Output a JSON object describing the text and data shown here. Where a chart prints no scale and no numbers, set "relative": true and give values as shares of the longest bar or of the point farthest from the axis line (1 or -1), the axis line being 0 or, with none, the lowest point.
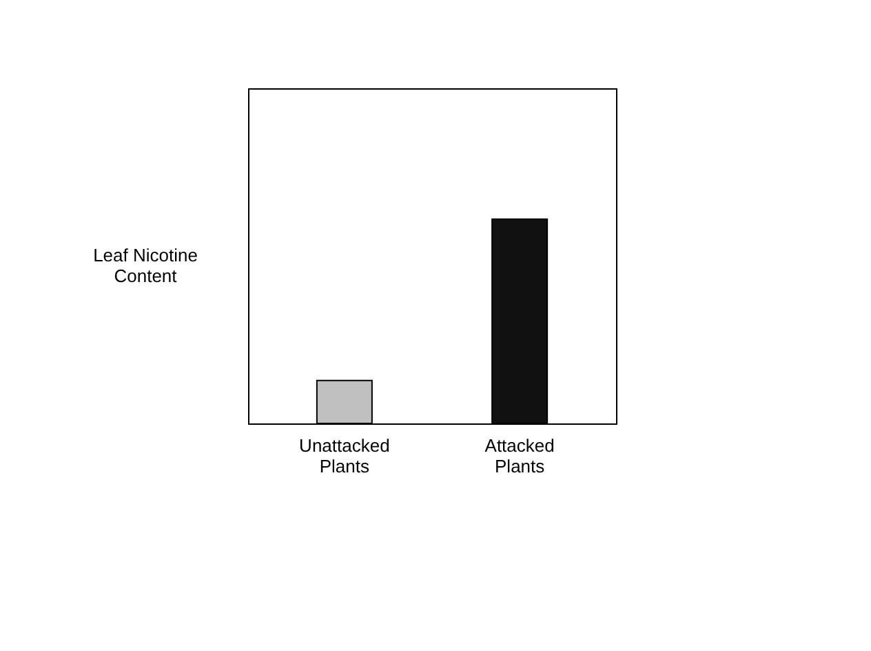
{
  "chart_data": {
    "type": "bar",
    "relative": true,
    "ylabel": "Leaf Nicotine Content",
    "categories": [
      "Unattacked Plants",
      "Attacked Plants"
    ],
    "values": [
      0.21,
      1
    ],
    "colors": [
      "#c0c0c0",
      "#111111"
    ],
    "grid": false,
    "legend": false
  }
}
